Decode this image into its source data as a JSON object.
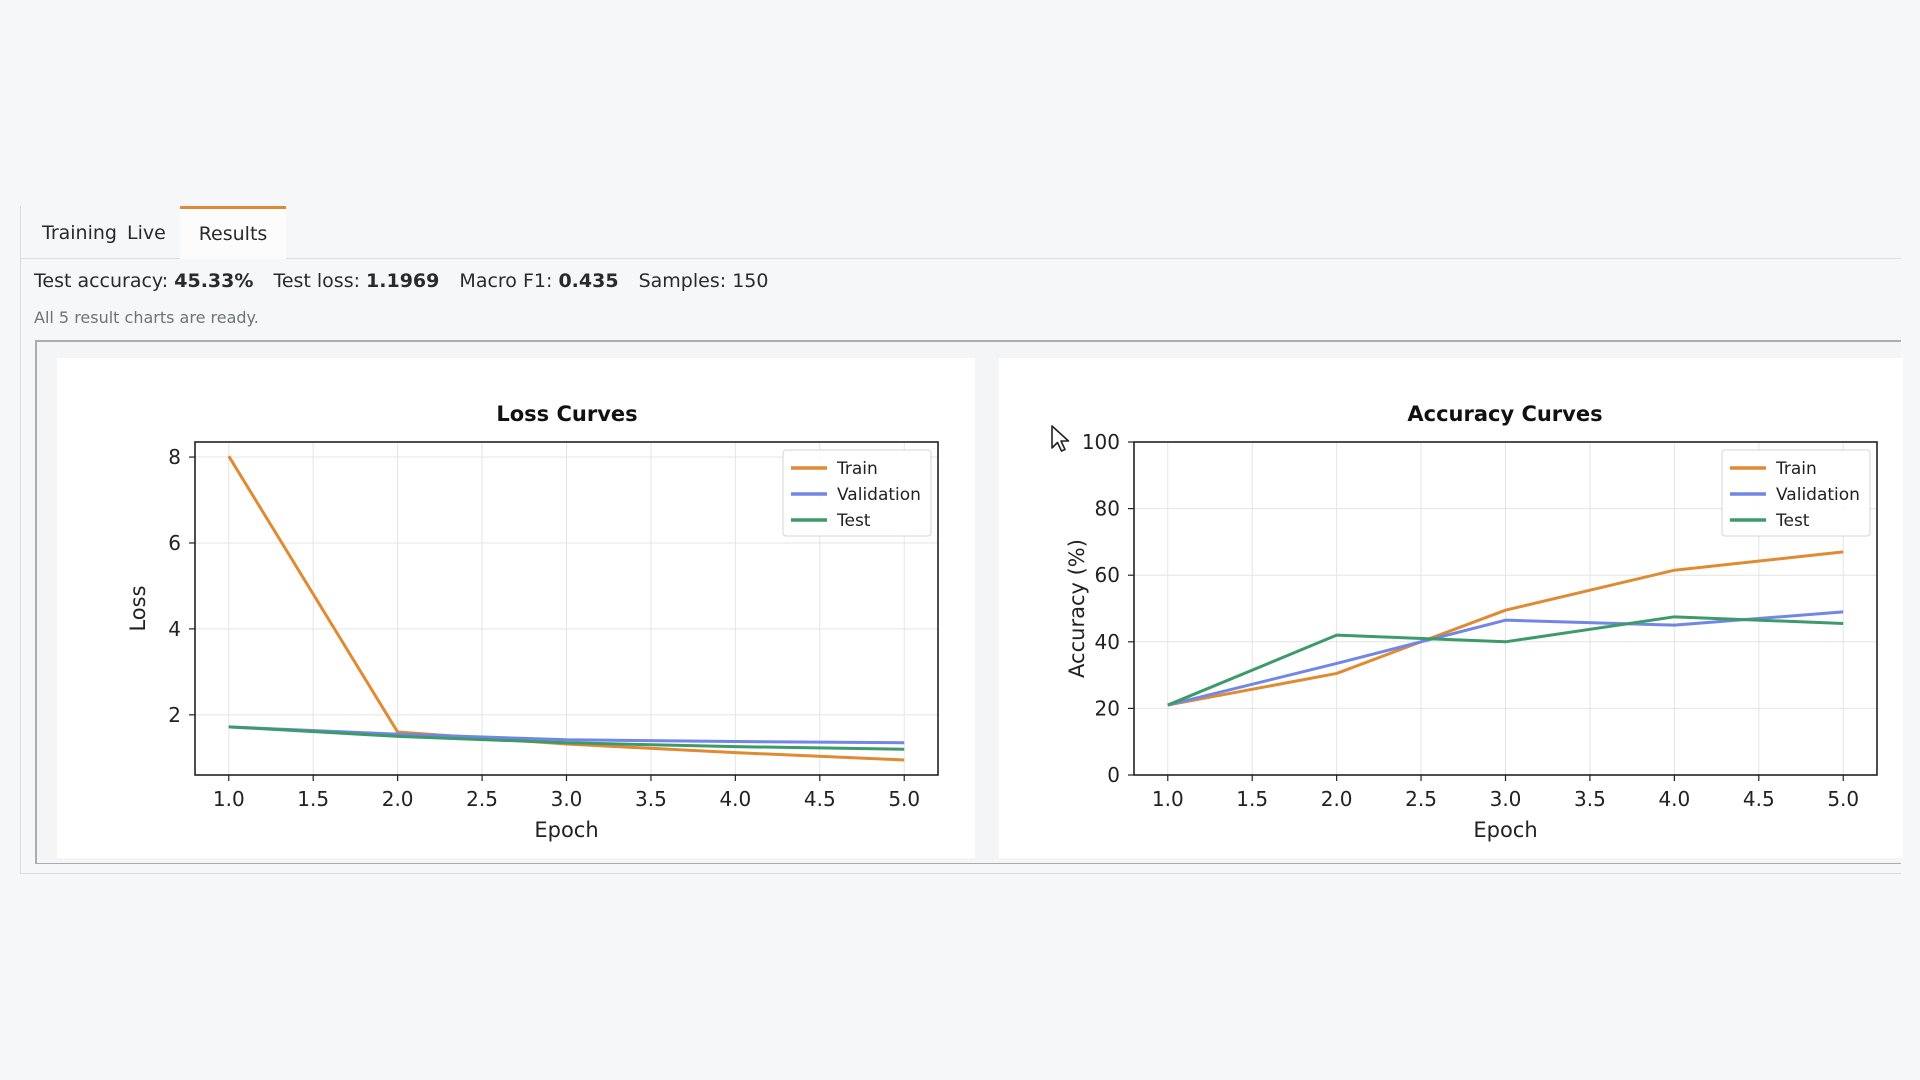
{
  "tabs": [
    {
      "label": "Training",
      "badge": "Live",
      "active": false
    },
    {
      "label": "Results",
      "active": true
    }
  ],
  "summary": {
    "accuracy_label": "Test accuracy:",
    "accuracy_value": "45.33%",
    "loss_label": "Test loss:",
    "loss_value": "1.1969",
    "f1_label": "Macro F1:",
    "f1_value": "0.435",
    "samples_label": "Samples:",
    "samples_value": "150",
    "status": "All 5 result charts are ready."
  },
  "colors": {
    "accent": "#e08a33",
    "train": "#e08a33",
    "validation": "#7186e6",
    "test": "#3d9a6a"
  },
  "chart_data": [
    {
      "type": "line",
      "title": "Loss Curves",
      "xlabel": "Epoch",
      "ylabel": "Loss",
      "x": [
        1,
        2,
        3,
        4,
        5
      ],
      "xticks": [
        "1.0",
        "1.5",
        "2.0",
        "2.5",
        "3.0",
        "3.5",
        "4.0",
        "4.5",
        "5.0"
      ],
      "yticks": [
        "2",
        "4",
        "6",
        "8"
      ],
      "xlim": [
        0.8,
        5.2
      ],
      "ylim": [
        0.6,
        8.35
      ],
      "grid": true,
      "legend": "top-right",
      "series": [
        {
          "name": "Train",
          "values": [
            8.02,
            1.6,
            1.32,
            1.12,
            0.95
          ]
        },
        {
          "name": "Validation",
          "values": [
            1.72,
            1.55,
            1.42,
            1.38,
            1.35
          ]
        },
        {
          "name": "Test",
          "values": [
            1.72,
            1.5,
            1.35,
            1.26,
            1.2
          ]
        }
      ]
    },
    {
      "type": "line",
      "title": "Accuracy Curves",
      "xlabel": "Epoch",
      "ylabel": "Accuracy (%)",
      "x": [
        1,
        2,
        3,
        4,
        5
      ],
      "xticks": [
        "1.0",
        "1.5",
        "2.0",
        "2.5",
        "3.0",
        "3.5",
        "4.0",
        "4.5",
        "5.0"
      ],
      "yticks": [
        "0",
        "20",
        "40",
        "60",
        "80",
        "100"
      ],
      "xlim": [
        0.8,
        5.2
      ],
      "ylim": [
        0,
        100
      ],
      "grid": true,
      "legend": "top-right",
      "series": [
        {
          "name": "Train",
          "values": [
            21,
            30.5,
            49.5,
            61.5,
            67
          ]
        },
        {
          "name": "Validation",
          "values": [
            21,
            33.5,
            46.5,
            45,
            49
          ]
        },
        {
          "name": "Test",
          "values": [
            21,
            42,
            40,
            47.5,
            45.5
          ]
        }
      ]
    }
  ]
}
